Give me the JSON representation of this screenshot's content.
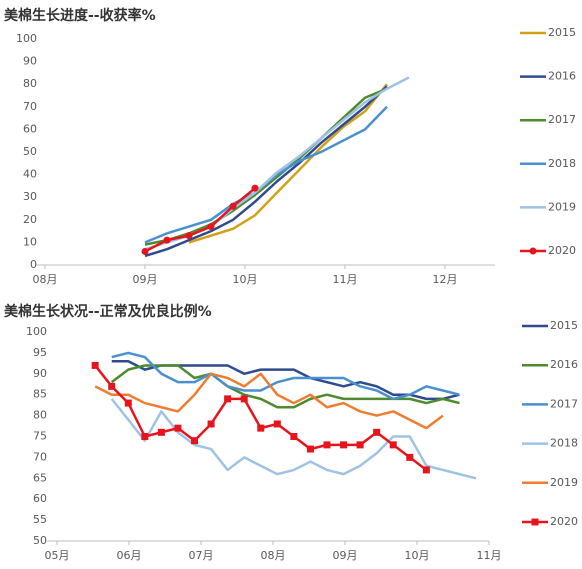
{
  "chart_data": [
    {
      "type": "line",
      "title": "美棉生长进度--收获率%",
      "x": [
        9.0,
        9.22,
        9.44,
        9.66,
        9.88,
        10.1,
        10.32,
        10.54,
        10.76,
        10.98,
        11.2,
        11.42,
        11.64
      ],
      "xlim": [
        8,
        12.5
      ],
      "xticks": [
        {
          "value": 8,
          "label": "08月"
        },
        {
          "value": 9,
          "label": "09月"
        },
        {
          "value": 10,
          "label": "10月"
        },
        {
          "value": 11,
          "label": "11月"
        },
        {
          "value": 12,
          "label": "12月"
        }
      ],
      "ylim": [
        0,
        100
      ],
      "yticks": [
        0,
        10,
        20,
        30,
        40,
        50,
        60,
        70,
        80,
        90,
        100
      ],
      "grid": false,
      "series": [
        {
          "name": "2015",
          "color": "#d4a017",
          "values": [
            null,
            null,
            10,
            13,
            16,
            22,
            32,
            42,
            52,
            61,
            68,
            80,
            null
          ]
        },
        {
          "name": "2016",
          "color": "#2e4b8f",
          "values": [
            4,
            7,
            11,
            15,
            20,
            28,
            37,
            45,
            54,
            62,
            70,
            79,
            null
          ]
        },
        {
          "name": "2017",
          "color": "#4e8a2e",
          "values": [
            9,
            11,
            14,
            18,
            24,
            31,
            39,
            47,
            56,
            65,
            74,
            78,
            null
          ]
        },
        {
          "name": "2018",
          "color": "#4a90d0",
          "values": [
            10,
            14,
            17,
            20,
            27,
            32,
            40,
            46,
            50,
            55,
            60,
            70,
            null
          ]
        },
        {
          "name": "2019",
          "color": "#9ec3e6",
          "values": [
            7,
            10,
            13,
            17,
            25,
            32,
            41,
            48,
            56,
            64,
            72,
            78,
            83
          ]
        },
        {
          "name": "2020",
          "color": "#e8141b",
          "marker": "circle",
          "values": [
            6,
            11,
            13,
            17,
            26,
            34,
            null,
            null,
            null,
            null,
            null,
            null,
            null
          ]
        }
      ]
    },
    {
      "type": "line",
      "title": "美棉生长状况--正常及优良比例%",
      "x": [
        5.53,
        5.76,
        5.99,
        6.22,
        6.45,
        6.68,
        6.91,
        7.14,
        7.37,
        7.6,
        7.83,
        8.06,
        8.29,
        8.52,
        8.75,
        8.98,
        9.21,
        9.44,
        9.67,
        9.9,
        10.13,
        10.36,
        10.59,
        10.82
      ],
      "xlim": [
        5,
        11
      ],
      "xticks": [
        {
          "value": 5,
          "label": "05月"
        },
        {
          "value": 6,
          "label": "06月"
        },
        {
          "value": 7,
          "label": "07月"
        },
        {
          "value": 8,
          "label": "08月"
        },
        {
          "value": 9,
          "label": "09月"
        },
        {
          "value": 10,
          "label": "10月"
        },
        {
          "value": 11,
          "label": "11月"
        }
      ],
      "ylim": [
        50,
        100
      ],
      "yticks": [
        50,
        55,
        60,
        65,
        70,
        75,
        80,
        85,
        90,
        95,
        100
      ],
      "grid": false,
      "series": [
        {
          "name": "2015",
          "color": "#2e4b8f",
          "values": [
            null,
            93,
            93,
            91,
            92,
            92,
            92,
            92,
            92,
            90,
            91,
            91,
            91,
            89,
            88,
            87,
            88,
            87,
            85,
            85,
            84,
            84,
            85,
            null
          ]
        },
        {
          "name": "2016",
          "color": "#4e8a2e",
          "values": [
            null,
            88,
            91,
            92,
            92,
            92,
            89,
            90,
            87,
            85,
            84,
            82,
            82,
            84,
            85,
            84,
            84,
            84,
            84,
            84,
            83,
            84,
            83,
            null
          ]
        },
        {
          "name": "2017",
          "color": "#4a90d0",
          "values": [
            null,
            94,
            95,
            94,
            90,
            88,
            88,
            90,
            87,
            86,
            86,
            88,
            89,
            89,
            89,
            89,
            87,
            86,
            84,
            85,
            87,
            86,
            85,
            null
          ]
        },
        {
          "name": "2018",
          "color": "#9ec3e6",
          "values": [
            null,
            84,
            79,
            74,
            81,
            76,
            73,
            72,
            67,
            70,
            68,
            66,
            67,
            69,
            67,
            66,
            68,
            71,
            75,
            75,
            68,
            67,
            66,
            65
          ]
        },
        {
          "name": "2019",
          "color": "#ed7d31",
          "values": [
            87,
            85,
            85,
            83,
            82,
            81,
            85,
            90,
            89,
            87,
            90,
            85,
            83,
            85,
            82,
            83,
            81,
            80,
            81,
            79,
            77,
            80,
            null,
            null
          ]
        },
        {
          "name": "2020",
          "color": "#e8141b",
          "marker": "square",
          "values": [
            92,
            87,
            83,
            75,
            76,
            77,
            74,
            78,
            84,
            84,
            77,
            78,
            75,
            72,
            73,
            73,
            73,
            76,
            73,
            70,
            67,
            null,
            null,
            null
          ]
        }
      ]
    }
  ]
}
